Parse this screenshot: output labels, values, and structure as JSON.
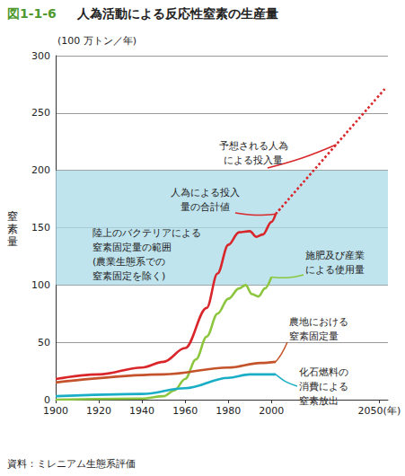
{
  "chart_data": {
    "type": "line",
    "figure_number": "図1-1-6",
    "title": "人為活動による反応性窒素の生産量",
    "y_unit": "(100 万トン／年)",
    "ylabel": "窒素量",
    "source": "資料：ミレニアム生態系評価",
    "xlim": [
      1900,
      2054
    ],
    "xticks": [
      1900,
      1920,
      1940,
      1960,
      1980,
      2000,
      {
        "value": 2050,
        "label": "2050(年)"
      }
    ],
    "ylim": [
      0,
      300
    ],
    "yticks": [
      0,
      50,
      100,
      150,
      200,
      250,
      300
    ],
    "grid": true,
    "band": {
      "range": [
        100,
        200
      ],
      "label": "陸上のバクテリアによる\n窒素固定量の範囲\n(農業生態系での\n窒素固定を除く)",
      "color": "#a9dbe8"
    },
    "series": [
      {
        "name": "人為による投入\n量の合計値",
        "color": "#d9262a",
        "line_style": "solid",
        "x": [
          1900,
          1920,
          1940,
          1950,
          1960,
          1970,
          1975,
          1980,
          1985,
          1990,
          1993,
          1996,
          2000,
          2002
        ],
        "values": [
          18,
          22,
          28,
          33,
          45,
          80,
          110,
          135,
          146,
          147,
          142,
          144,
          155,
          162
        ]
      },
      {
        "name": "予想される人為\nによる投入量",
        "color": "#d9262a",
        "line_style": "dotted",
        "x": [
          2002,
          2053
        ],
        "values": [
          162,
          272
        ]
      },
      {
        "name": "施肥及び産業\nによる使用量",
        "color": "#8cc63e",
        "line_style": "solid",
        "x": [
          1900,
          1940,
          1950,
          1955,
          1960,
          1965,
          1970,
          1975,
          1980,
          1985,
          1988,
          1991,
          1994,
          1997,
          2000
        ],
        "values": [
          0,
          1,
          3,
          8,
          18,
          35,
          55,
          75,
          88,
          97,
          100,
          92,
          90,
          97,
          107
        ]
      },
      {
        "name": "農地における\n窒素固定量",
        "color": "#c4522a",
        "line_style": "solid",
        "x": [
          1900,
          1950,
          1980,
          1995,
          2002
        ],
        "values": [
          15,
          22,
          28,
          32,
          33
        ]
      },
      {
        "name": "化石燃料の\n消費による\n窒素放出",
        "color": "#1aaec6",
        "line_style": "solid",
        "x": [
          1900,
          1940,
          1960,
          1980,
          1990,
          2002
        ],
        "values": [
          3,
          5,
          10,
          19,
          22,
          22
        ]
      }
    ]
  }
}
